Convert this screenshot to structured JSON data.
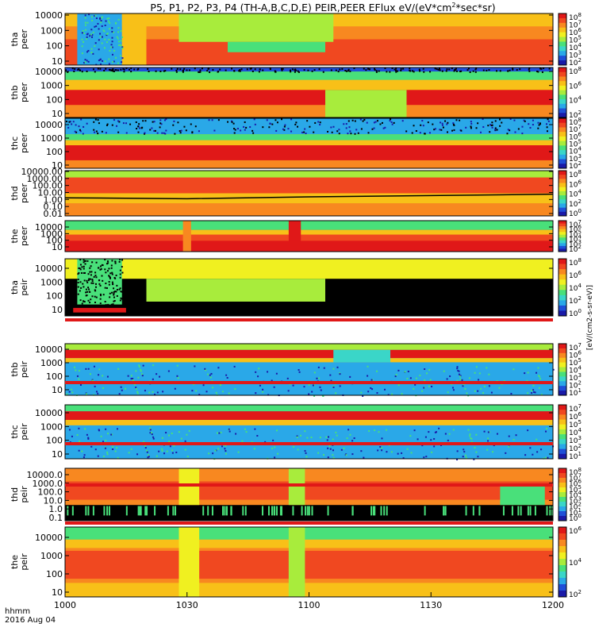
{
  "title": "P5, P1, P2, P3, P4 (TH-A,B,C,D,E) PEIR,PEER EFlux eV/(eV*cm2*sec*sr)",
  "title_parts": {
    "pre": "P5, P1, P2, P3, P4 (TH-A,B,C,D,E) PEIR,PEER EFlux eV/(eV*cm",
    "sup": "2",
    "post": "*sec*sr)"
  },
  "x_axis": {
    "ticks": [
      "1000",
      "1030",
      "1100",
      "1130",
      "1200"
    ],
    "range_hhmm": [
      "1000",
      "1200"
    ],
    "corner_label_1": "hhmm",
    "corner_label_2": "2016 Aug 04"
  },
  "colorbar_unit": "[eV/(cm2-s-sr-eV)]",
  "chart_data": [
    {
      "type": "heatmap",
      "panel": "tha peer",
      "ylabel_line1": "tha",
      "ylabel_line2": "peer",
      "y_scale": "log",
      "y_ticks": [
        "10000",
        "1000",
        "100",
        "10"
      ],
      "colorbar_ticks": [
        "10^8",
        "10^7",
        "10^6",
        "10^5",
        "10^4",
        "10^3",
        "10^2"
      ]
    },
    {
      "type": "heatmap",
      "panel": "thb peer",
      "ylabel_line1": "thb",
      "ylabel_line2": "peer",
      "y_scale": "log",
      "y_ticks": [
        "10000",
        "1000",
        "100",
        "10"
      ],
      "colorbar_ticks": [
        "10^8",
        "10^6",
        "10^4",
        "10^2"
      ]
    },
    {
      "type": "heatmap",
      "panel": "thc peer",
      "ylabel_line1": "thc",
      "ylabel_line2": "peer",
      "y_scale": "log",
      "y_ticks": [
        "10000",
        "1000",
        "100",
        "10"
      ],
      "colorbar_ticks": [
        "10^8",
        "10^7",
        "10^6",
        "10^5",
        "10^4",
        "10^3",
        "10^2"
      ]
    },
    {
      "type": "heatmap",
      "panel": "thd peer",
      "ylabel_line1": "thd",
      "ylabel_line2": "peer",
      "y_scale": "log",
      "y_ticks": [
        "10000.00",
        "1000.00",
        "100.00",
        "10.00",
        "1.00",
        "0.10",
        "0.01"
      ],
      "colorbar_ticks": [
        "10^8",
        "10^6",
        "10^4",
        "10^2",
        "10^0"
      ]
    },
    {
      "type": "heatmap",
      "panel": "the peer",
      "ylabel_line1": "the",
      "ylabel_line2": "peer",
      "y_scale": "log",
      "y_ticks": [
        "10000",
        "1000",
        "100",
        "10"
      ],
      "colorbar_ticks": [
        "10^7",
        "10^6",
        "10^5",
        "10^4",
        "10^3",
        "10^2"
      ]
    },
    {
      "type": "heatmap",
      "panel": "tha peir",
      "ylabel_line1": "tha",
      "ylabel_line2": "peir",
      "y_scale": "log",
      "y_ticks": [
        "10000",
        "1000",
        "100",
        "10"
      ],
      "colorbar_ticks": [
        "10^8",
        "10^6",
        "10^4",
        "10^2",
        "10^0"
      ]
    },
    {
      "type": "heatmap",
      "panel": "thb peir",
      "ylabel_line1": "thb",
      "ylabel_line2": "peir",
      "y_scale": "log",
      "y_ticks": [
        "10000",
        "1000",
        "100",
        "10"
      ],
      "colorbar_ticks": [
        "10^7",
        "10^6",
        "10^5",
        "10^4",
        "10^3",
        "10^2",
        "10^1"
      ]
    },
    {
      "type": "heatmap",
      "panel": "thc peir",
      "ylabel_line1": "thc",
      "ylabel_line2": "peir",
      "y_scale": "log",
      "y_ticks": [
        "10000",
        "1000",
        "100",
        "10"
      ],
      "colorbar_ticks": [
        "10^7",
        "10^6",
        "10^5",
        "10^4",
        "10^3",
        "10^2",
        "10^1"
      ]
    },
    {
      "type": "heatmap",
      "panel": "thd peir",
      "ylabel_line1": "thd",
      "ylabel_line2": "peir",
      "y_scale": "log",
      "y_ticks": [
        "10000.0",
        "1000.0",
        "100.0",
        "10.0",
        "1.0",
        "0.1"
      ],
      "colorbar_ticks": [
        "10^8",
        "10^7",
        "10^6",
        "10^5",
        "10^4",
        "10^3",
        "10^2",
        "10^1",
        "10^0"
      ]
    },
    {
      "type": "heatmap",
      "panel": "the peir",
      "ylabel_line1": "the",
      "ylabel_line2": "peir",
      "y_scale": "log",
      "y_ticks": [
        "10000",
        "1000",
        "100",
        "10"
      ],
      "colorbar_ticks": [
        "10^6",
        "10^4",
        "10^2"
      ]
    }
  ]
}
